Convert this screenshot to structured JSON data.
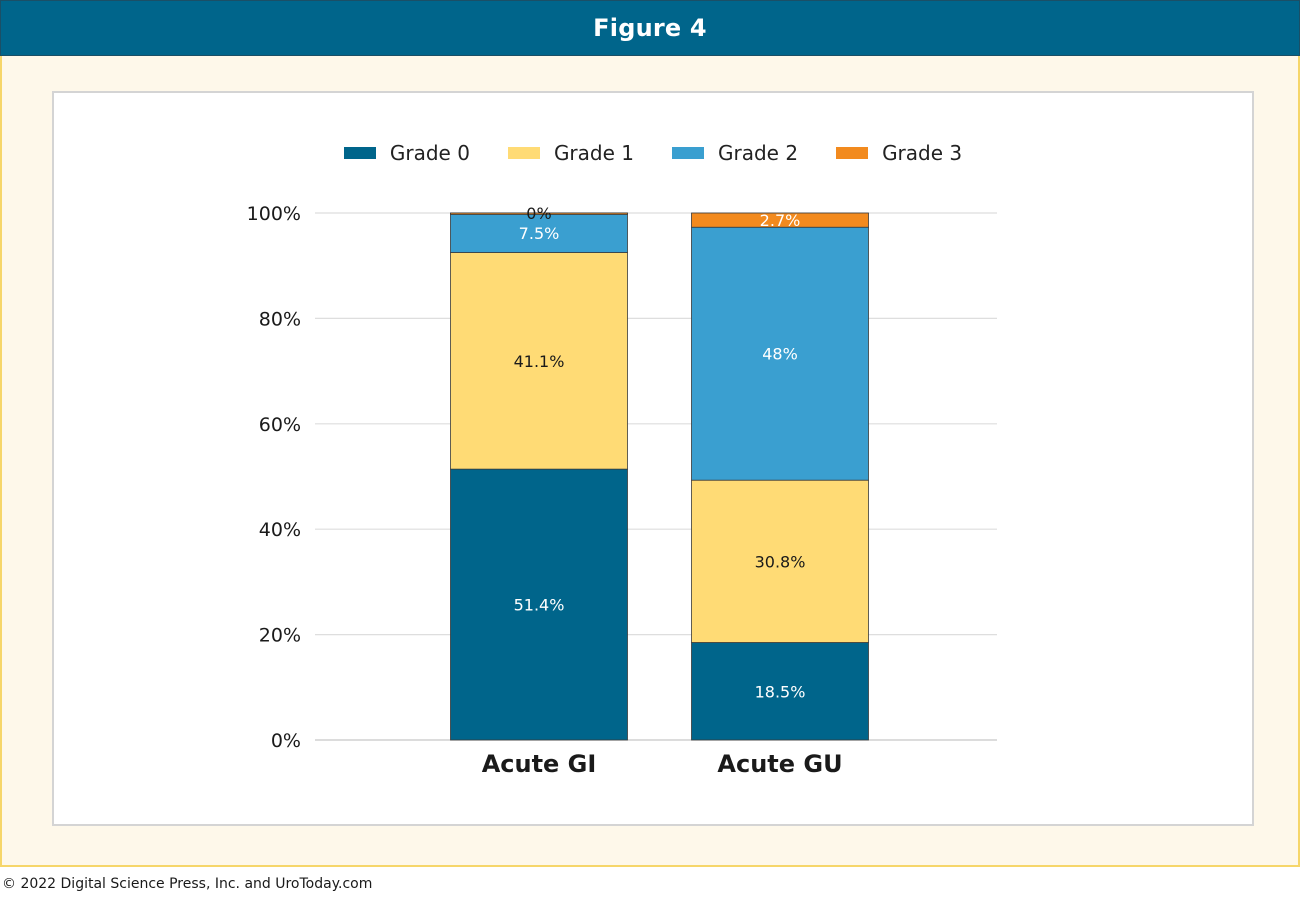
{
  "header": {
    "title": "Figure 4"
  },
  "footer": {
    "copyright": "© 2022 Digital Science Press, Inc. and UroToday.com"
  },
  "colors": {
    "header_bg": "#00658b",
    "outer_bg": "#fef8ea",
    "outer_border": "#f6d66a",
    "grade0": "#00658b",
    "grade1": "#ffdb75",
    "grade2": "#3a9fd0",
    "grade3": "#f28a1e"
  },
  "chart_data": {
    "type": "bar",
    "stacked": true,
    "categories": [
      "Acute GI",
      "Acute GU"
    ],
    "series": [
      {
        "name": "Grade 0",
        "color": "#00658b",
        "values": [
          51.4,
          18.5
        ],
        "labels": [
          "51.4%",
          "18.5%"
        ],
        "label_color": "#ffffff"
      },
      {
        "name": "Grade 1",
        "color": "#ffdb75",
        "values": [
          41.1,
          30.8
        ],
        "labels": [
          "41.1%",
          "30.8%"
        ],
        "label_color": "#1a1a1a"
      },
      {
        "name": "Grade 2",
        "color": "#3a9fd0",
        "values": [
          7.5,
          48
        ],
        "labels": [
          "7.5%",
          "48%"
        ],
        "label_color": "#ffffff"
      },
      {
        "name": "Grade 3",
        "color": "#f28a1e",
        "values": [
          0,
          2.7
        ],
        "labels": [
          "0%",
          "2.7%"
        ],
        "label_color": "#ffffff"
      }
    ],
    "yticks": [
      "0%",
      "20%",
      "40%",
      "60%",
      "80%",
      "100%"
    ],
    "ylim": [
      0,
      100
    ],
    "grid": true,
    "legend": "top-center"
  }
}
